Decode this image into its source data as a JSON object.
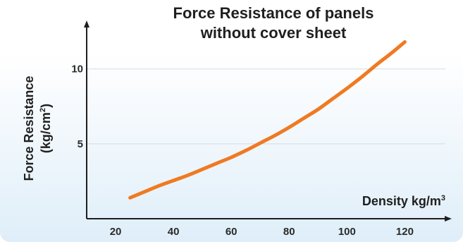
{
  "chart_data": {
    "type": "line",
    "title_lines": [
      "Force Resistance of panels",
      "without cover sheet"
    ],
    "xlabel": "Density kg/m",
    "xlabel_sup": "3",
    "ylabel_line1": "Force Resistance",
    "ylabel_line2_pre": "(kg/cm",
    "ylabel_line2_sup": "2",
    "ylabel_line2_post": ")",
    "x_ticks": [
      20,
      40,
      60,
      80,
      100,
      120
    ],
    "y_ticks": [
      5,
      10
    ],
    "xlim": [
      10,
      135
    ],
    "ylim": [
      0,
      13
    ],
    "grid": "horizontal",
    "line_color": "#ef7a22",
    "series": [
      {
        "x": [
          25,
          30,
          35,
          40,
          45,
          50,
          55,
          60,
          65,
          70,
          75,
          80,
          85,
          90,
          95,
          100,
          105,
          110,
          115,
          120
        ],
        "y": [
          1.4,
          1.8,
          2.2,
          2.55,
          2.9,
          3.3,
          3.7,
          4.1,
          4.55,
          5.05,
          5.55,
          6.1,
          6.7,
          7.3,
          8.0,
          8.7,
          9.45,
          10.25,
          11.0,
          11.8
        ]
      }
    ]
  }
}
